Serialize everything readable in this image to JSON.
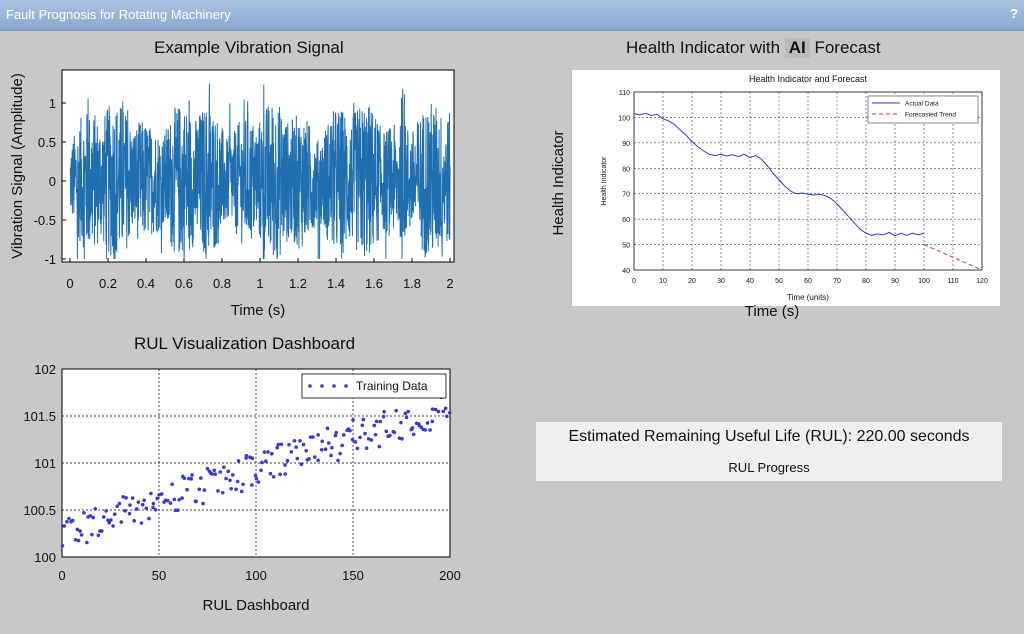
{
  "window": {
    "title": "Fault Prognosis for Rotating Machinery",
    "help_label": "?"
  },
  "vibration_panel": {
    "title": "Example Vibration Signal",
    "chart_data": {
      "type": "line",
      "xlabel": "Time (s)",
      "ylabel": "Vibration Signal (Amplitude)",
      "xlim": [
        0,
        2
      ],
      "ylim": [
        -1,
        1.25
      ],
      "xticks": [
        "0",
        "0.2",
        "0.4",
        "0.6",
        "0.8",
        "1",
        "1.2",
        "1.4",
        "1.6",
        "1.8",
        "2"
      ],
      "yticks": [
        "-1",
        "-0.5",
        "0",
        "0.5",
        "1"
      ],
      "color": "#1f6fb0"
    }
  },
  "health_panel": {
    "title_prefix": "Health Indicator with ",
    "title_badge": "AI",
    "title_suffix": " Forecast",
    "outer_ylabel": "Health Indicator",
    "outer_xlabel": "Time (s)",
    "chart_data": {
      "type": "line",
      "title": "Health Indicator and Forecast",
      "xlabel": "Time (units)",
      "ylabel": "Health Indicator",
      "xlim": [
        0,
        120
      ],
      "ylim": [
        40,
        110
      ],
      "xticks": [
        "0",
        "10",
        "20",
        "30",
        "40",
        "50",
        "60",
        "70",
        "80",
        "90",
        "100",
        "110",
        "120"
      ],
      "yticks": [
        "40",
        "50",
        "60",
        "70",
        "80",
        "90",
        "100",
        "110"
      ],
      "grid": true,
      "legend": "top-right",
      "series": [
        {
          "name": "Actual Data",
          "color": "#2a3fd0",
          "style": "solid",
          "x": [
            0,
            2,
            4,
            6,
            8,
            10,
            12,
            14,
            16,
            18,
            20,
            22,
            24,
            26,
            28,
            30,
            32,
            34,
            36,
            38,
            40,
            42,
            44,
            46,
            48,
            50,
            52,
            54,
            56,
            58,
            60,
            62,
            64,
            66,
            68,
            70,
            72,
            74,
            76,
            78,
            80,
            82,
            84,
            86,
            88,
            90,
            92,
            94,
            96,
            98,
            100
          ],
          "y": [
            101.5,
            101,
            101.6,
            100.8,
            101.2,
            99.5,
            98.6,
            97.2,
            95,
            93,
            90.5,
            88.5,
            86.8,
            85.5,
            85,
            85.5,
            84.8,
            85.3,
            84.6,
            85.5,
            84.2,
            85,
            83.5,
            81,
            78,
            75.5,
            73,
            71,
            70,
            70.3,
            69.8,
            69.5,
            69.8,
            69.2,
            68,
            66,
            63.5,
            61,
            58.5,
            56,
            54.5,
            53.6,
            54.2,
            53.8,
            54.8,
            53.5,
            54.5,
            53.6,
            54.5,
            53.8,
            54.5
          ]
        },
        {
          "name": "Forecasted Trend",
          "color": "#e03030",
          "style": "dashed",
          "x": [
            100,
            120
          ],
          "y": [
            50,
            40
          ]
        }
      ]
    }
  },
  "rul_panel": {
    "title": "RUL Visualization Dashboard",
    "chart_data": {
      "type": "scatter",
      "xlabel": "RUL Dashboard",
      "xlim": [
        0,
        200
      ],
      "ylim": [
        100,
        102
      ],
      "xticks": [
        "0",
        "50",
        "100",
        "150",
        "200"
      ],
      "yticks": [
        "100",
        "100.5",
        "101",
        "101.5",
        "102"
      ],
      "grid": true,
      "legend": "top-right",
      "series": [
        {
          "name": "Training Data",
          "color": "#3838d8"
        }
      ]
    }
  },
  "rul_info": {
    "estimate_text": "Estimated Remaining Useful Life (RUL): 220.00 seconds",
    "progress_label": "RUL Progress"
  }
}
